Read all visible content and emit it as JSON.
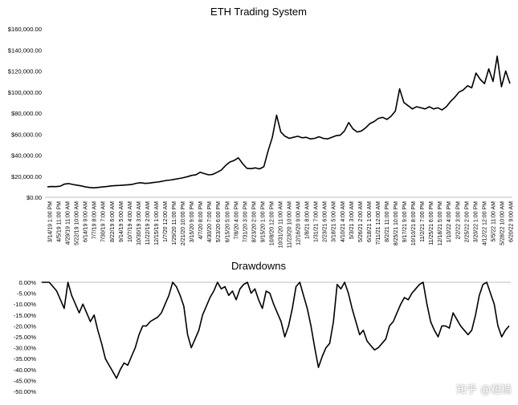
{
  "chart_data": [
    {
      "type": "line",
      "title": "ETH Trading System",
      "xlabel": "",
      "ylabel": "",
      "ylim": [
        0,
        160000
      ],
      "grid": false,
      "legend": "none",
      "line_color": "#000000",
      "y_tick_labels": [
        "$0.00",
        "$20,000.00",
        "$40,000.00",
        "$60,000.00",
        "$80,000.00",
        "$100,000.00",
        "$120,000.00",
        "$140,000.00",
        "$160,000.00"
      ],
      "y_tick_values": [
        0,
        20000,
        40000,
        60000,
        80000,
        100000,
        120000,
        140000,
        160000
      ],
      "x_tick_labels": [
        "3/14/19 1:00 PM",
        "4/5/19 11:00 PM",
        "4/29/19 11:00 AM",
        "5/22/19 10:00 AM",
        "6/14/19 9:00 AM",
        "7/7/19 8:00 AM",
        "7/30/19 7:00 AM",
        "8/22/19 6:00 AM",
        "9/14/19 5:00 AM",
        "10/7/19 4:00 AM",
        "10/30/19 3:00 AM",
        "11/22/19 2:00 AM",
        "12/15/19 1:00 AM",
        "1/7/20 12:00 AM",
        "1/29/20 11:00 PM",
        "2/21/20 10:00 PM",
        "3/15/20 9:00 PM",
        "4/7/20 8:00 PM",
        "4/30/20 7:00 PM",
        "5/23/20 6:00 PM",
        "6/15/20 5:00 PM",
        "7/8/20 4:00 PM",
        "7/31/20 3:00 PM",
        "8/23/20 2:00 PM",
        "9/15/20 1:00 PM",
        "10/8/20 12:00 PM",
        "10/31/20 11:00 AM",
        "11/23/20 10:00 AM",
        "12/16/20 9:00 AM",
        "1/8/21 8:00 AM",
        "1/31/21 7:00 AM",
        "2/23/21 6:00 AM",
        "3/18/21 5:00 AM",
        "4/10/21 4:00 AM",
        "5/3/21 3:00 AM",
        "5/26/21 2:00 AM",
        "6/18/21 1:00 AM",
        "7/11/21 12:00 AM",
        "8/2/21 11:00 PM",
        "8/25/21 10:00 PM",
        "9/17/21 9:00 PM",
        "10/10/21 8:00 PM",
        "11/2/21 7:00 PM",
        "11/25/21 6:00 PM",
        "12/18/21 5:00 PM",
        "1/10/22 4:00 PM",
        "2/2/22 3:00 PM",
        "2/25/22 2:00 PM",
        "3/20/22 1:00 PM",
        "4/12/22 12:00 PM",
        "5/5/22 11:00 AM",
        "5/28/22 10:00 AM",
        "6/20/22 9:00 AM"
      ],
      "series": [
        {
          "values": [
            10000,
            10200,
            10100,
            10500,
            12500,
            13000,
            12200,
            11500,
            10800,
            9800,
            9300,
            9000,
            9400,
            9800,
            10200,
            10800,
            11100,
            11300,
            11600,
            11900,
            12300,
            13300,
            13900,
            13200,
            13500,
            14000,
            14500,
            15200,
            16000,
            16400,
            17100,
            17800,
            18600,
            19600,
            20800,
            21400,
            23800,
            22500,
            21300,
            21800,
            23800,
            26000,
            30200,
            33500,
            35000,
            37500,
            32000,
            27500,
            27200,
            28000,
            27000,
            29000,
            44000,
            57000,
            78000,
            62000,
            58000,
            56000,
            57000,
            58000,
            56500,
            57000,
            55500,
            56000,
            57500,
            56000,
            55500,
            57000,
            58500,
            59000,
            63000,
            71000,
            65000,
            62000,
            63000,
            66000,
            70000,
            72000,
            75000,
            76000,
            74000,
            77000,
            82000,
            103000,
            90000,
            87000,
            84000,
            86000,
            85000,
            84000,
            86000,
            84000,
            85000,
            83000,
            86000,
            91000,
            95000,
            100000,
            102000,
            106000,
            104000,
            118000,
            112000,
            108000,
            122000,
            110000,
            134000,
            105000,
            120000,
            108000
          ]
        }
      ]
    },
    {
      "type": "area",
      "title": "Drawdowns",
      "xlabel": "",
      "ylabel": "",
      "ylim": [
        -0.5,
        0
      ],
      "grid": false,
      "legend": "none",
      "line_color": "#000000",
      "y_tick_labels": [
        "0.00%",
        "-5.00%",
        "-10.00%",
        "-15.00%",
        "-20.00%",
        "-25.00%",
        "-30.00%",
        "-35.00%",
        "-40.00%",
        "-45.00%",
        "-50.00%"
      ],
      "y_tick_values": [
        0,
        -0.05,
        -0.1,
        -0.15,
        -0.2,
        -0.25,
        -0.3,
        -0.35,
        -0.4,
        -0.45,
        -0.5
      ],
      "series": [
        {
          "values": [
            0,
            0,
            0,
            -0.02,
            -0.04,
            -0.08,
            -0.12,
            0,
            -0.06,
            -0.1,
            -0.14,
            -0.1,
            -0.14,
            -0.18,
            -0.15,
            -0.22,
            -0.28,
            -0.35,
            -0.38,
            -0.41,
            -0.44,
            -0.4,
            -0.37,
            -0.38,
            -0.34,
            -0.3,
            -0.24,
            -0.2,
            -0.2,
            -0.18,
            -0.17,
            -0.16,
            -0.14,
            -0.1,
            -0.06,
            0,
            -0.02,
            -0.06,
            -0.11,
            -0.24,
            -0.3,
            -0.26,
            -0.22,
            -0.15,
            -0.11,
            -0.07,
            -0.04,
            0,
            -0.03,
            -0.02,
            -0.06,
            -0.04,
            -0.08,
            -0.03,
            -0.01,
            0,
            -0.05,
            -0.03,
            -0.08,
            -0.12,
            -0.04,
            -0.05,
            -0.1,
            -0.14,
            -0.18,
            -0.25,
            -0.2,
            -0.12,
            -0.02,
            0,
            -0.06,
            -0.12,
            -0.2,
            -0.3,
            -0.39,
            -0.34,
            -0.3,
            -0.28,
            -0.18,
            -0.01,
            -0.03,
            0,
            -0.05,
            -0.12,
            -0.18,
            -0.24,
            -0.22,
            -0.27,
            -0.29,
            -0.31,
            -0.3,
            -0.28,
            -0.26,
            -0.2,
            -0.18,
            -0.14,
            -0.1,
            -0.07,
            -0.08,
            -0.05,
            -0.03,
            -0.01,
            0,
            -0.1,
            -0.18,
            -0.22,
            -0.25,
            -0.2,
            -0.2,
            -0.21,
            -0.14,
            -0.17,
            -0.2,
            -0.22,
            -0.24,
            -0.22,
            -0.15,
            -0.06,
            -0.01,
            0,
            -0.05,
            -0.1,
            -0.2,
            -0.25,
            -0.22,
            -0.2
          ]
        }
      ]
    }
  ],
  "watermark": "知乎 @粗糙"
}
